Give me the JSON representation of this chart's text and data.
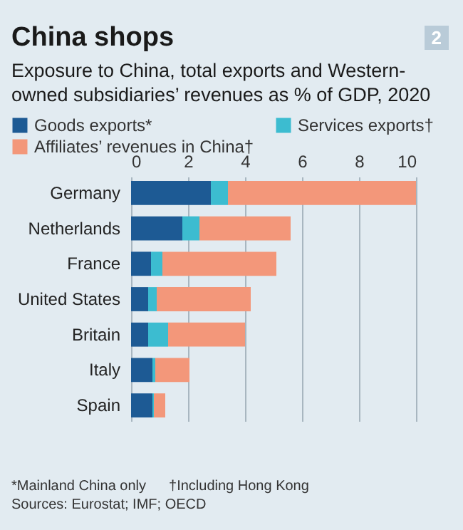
{
  "chart_data": {
    "type": "bar",
    "orientation": "horizontal",
    "stacked": true,
    "title": "China shops",
    "subtitle": "Exposure to China, total exports and Western-owned subsidiaries’ revenues as % of GDP, 2020",
    "categories": [
      "Germany",
      "Netherlands",
      "France",
      "United States",
      "Britain",
      "Italy",
      "Spain"
    ],
    "series": [
      {
        "name": "Goods exports*",
        "color": "#1d5a94",
        "values": [
          2.8,
          1.8,
          0.7,
          0.6,
          0.6,
          0.75,
          0.75
        ]
      },
      {
        "name": "Services exports†",
        "color": "#3cbcd0",
        "values": [
          0.6,
          0.6,
          0.4,
          0.3,
          0.7,
          0.1,
          0.05
        ]
      },
      {
        "name": "Affiliates’ revenues in China†",
        "color": "#f3977a",
        "values": [
          6.6,
          3.2,
          4.0,
          3.3,
          2.7,
          1.2,
          0.4
        ]
      }
    ],
    "xlim": [
      0,
      10
    ],
    "xticks": [
      0,
      2,
      4,
      6,
      8,
      10
    ],
    "grid": "x",
    "legend": "top",
    "annotations": [
      "2",
      "*Mainland China only",
      "†Including Hong Kong",
      "Sources: Eurostat; IMF; OECD"
    ]
  }
}
